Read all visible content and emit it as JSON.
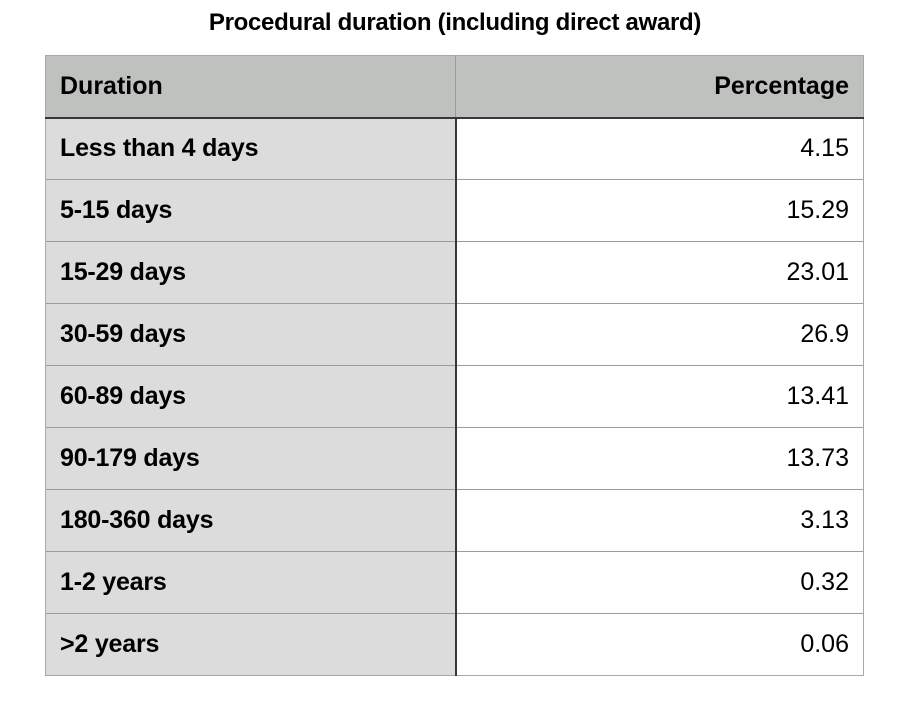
{
  "title": "Procedural duration (including direct award)",
  "table": {
    "headers": [
      "Duration",
      "Percentage"
    ],
    "rows": [
      {
        "duration": "Less than 4 days",
        "percentage": "4.15"
      },
      {
        "duration": "5-15 days",
        "percentage": "15.29"
      },
      {
        "duration": "15-29 days",
        "percentage": "23.01"
      },
      {
        "duration": "30-59 days",
        "percentage": "26.9"
      },
      {
        "duration": "60-89 days",
        "percentage": "13.41"
      },
      {
        "duration": "90-179 days",
        "percentage": "13.73"
      },
      {
        "duration": "180-360 days",
        "percentage": "3.13"
      },
      {
        "duration": "1-2 years",
        "percentage": "0.32"
      },
      {
        "duration": ">2 years",
        "percentage": "0.06"
      }
    ]
  },
  "colors": {
    "header_bg": "#bfc1bf",
    "label_bg": "#dcdcdc",
    "value_bg": "#ffffff",
    "row_line": "#9b9b9b",
    "strong_line": "#383838",
    "outer_border": "#a8a8a8"
  },
  "chart_data": {
    "type": "table",
    "title": "Procedural duration (including direct award)",
    "columns": [
      "Duration",
      "Percentage"
    ],
    "categories": [
      "Less than 4 days",
      "5-15 days",
      "15-29 days",
      "30-59 days",
      "60-89 days",
      "90-179 days",
      "180-360 days",
      "1-2 years",
      ">2 years"
    ],
    "values": [
      4.15,
      15.29,
      23.01,
      26.9,
      13.41,
      13.73,
      3.13,
      0.32,
      0.06
    ]
  }
}
